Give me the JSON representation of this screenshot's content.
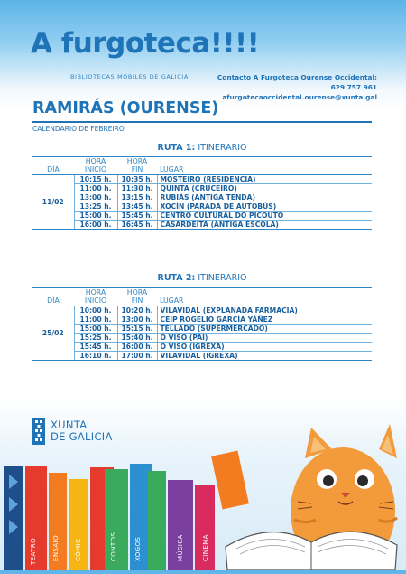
{
  "header": {
    "brand": "A furgoteca!!!!",
    "subtitle": "BIBLIOTECAS MÓBILES DE GALICIA",
    "contact_title": "Contacto A Furgoteca Ourense Occidental:",
    "contact_phone": "629 757 961",
    "contact_email": "afurgotecaoccidental.ourense@xunta.gal"
  },
  "place": "RAMIRÁS (OURENSE)",
  "calendar": "CALENDARIO DE FEBREIRO",
  "columns": {
    "day": "DÍA",
    "start_1": "HORA",
    "start_2": "INICIO",
    "end_1": "HORA",
    "end_2": "FIN",
    "place": "LUGAR"
  },
  "routes": [
    {
      "title_bold": "RUTA 1:",
      "title_rest": " ITINERARIO",
      "day": "11/02",
      "rows": [
        {
          "start": "10:15 h.",
          "end": "10:35 h.",
          "place": "MOSTEIRO (RESIDENCIA)"
        },
        {
          "start": "11:00 h.",
          "end": "11:30 h.",
          "place": "QUINTA (CRUCEIRO)"
        },
        {
          "start": "13:00 h.",
          "end": "13:15 h.",
          "place": "RUBIÁS (ANTIGA TENDA)"
        },
        {
          "start": "13:25 h.",
          "end": "13:45 h.",
          "place": "XOCÍN (PARADA DE AUTOBÚS)"
        },
        {
          "start": "15:00 h.",
          "end": "15:45 h.",
          "place": "CENTRO CULTURAL DO PICOUTO"
        },
        {
          "start": "16:00 h.",
          "end": "16:45 h.",
          "place": "CASARDEITA (ANTIGA ESCOLA)"
        }
      ]
    },
    {
      "title_bold": "RUTA 2:",
      "title_rest": " ITINERARIO",
      "day": "25/02",
      "rows": [
        {
          "start": "10:00 h.",
          "end": "10:20 h.",
          "place": "VILAVIDAL (EXPLANADA FARMACIA)"
        },
        {
          "start": "11:00 h.",
          "end": "13:00 h.",
          "place": "CEIP ROGELIO GARCÍA YÁÑEZ"
        },
        {
          "start": "15:00 h.",
          "end": "15:15 h.",
          "place": "TELLADO (SUPERMERCADO)"
        },
        {
          "start": "15:25 h.",
          "end": "15:40 h.",
          "place": "O VISO (PAI)"
        },
        {
          "start": "15:45 h.",
          "end": "16:00 h.",
          "place": "O VISO (IGREXA)"
        },
        {
          "start": "16:10 h.",
          "end": "17:00 h.",
          "place": "VILAVIDAL (IGREXA)"
        }
      ]
    }
  ],
  "footer": {
    "logo_line1": "XUNTA",
    "logo_line2": "DE GALICIA"
  },
  "books": {
    "labels": [
      "TEATRO",
      "ENSAIO",
      "CÓMIC",
      "CONTOS",
      "XOGOS",
      "MÚSICA",
      "CINEMA"
    ],
    "colors": [
      "#e53b2f",
      "#f47c20",
      "#f6b513",
      "#3aaa5c",
      "#2b8fd0",
      "#7b3fa0",
      "#d92b5e"
    ]
  }
}
